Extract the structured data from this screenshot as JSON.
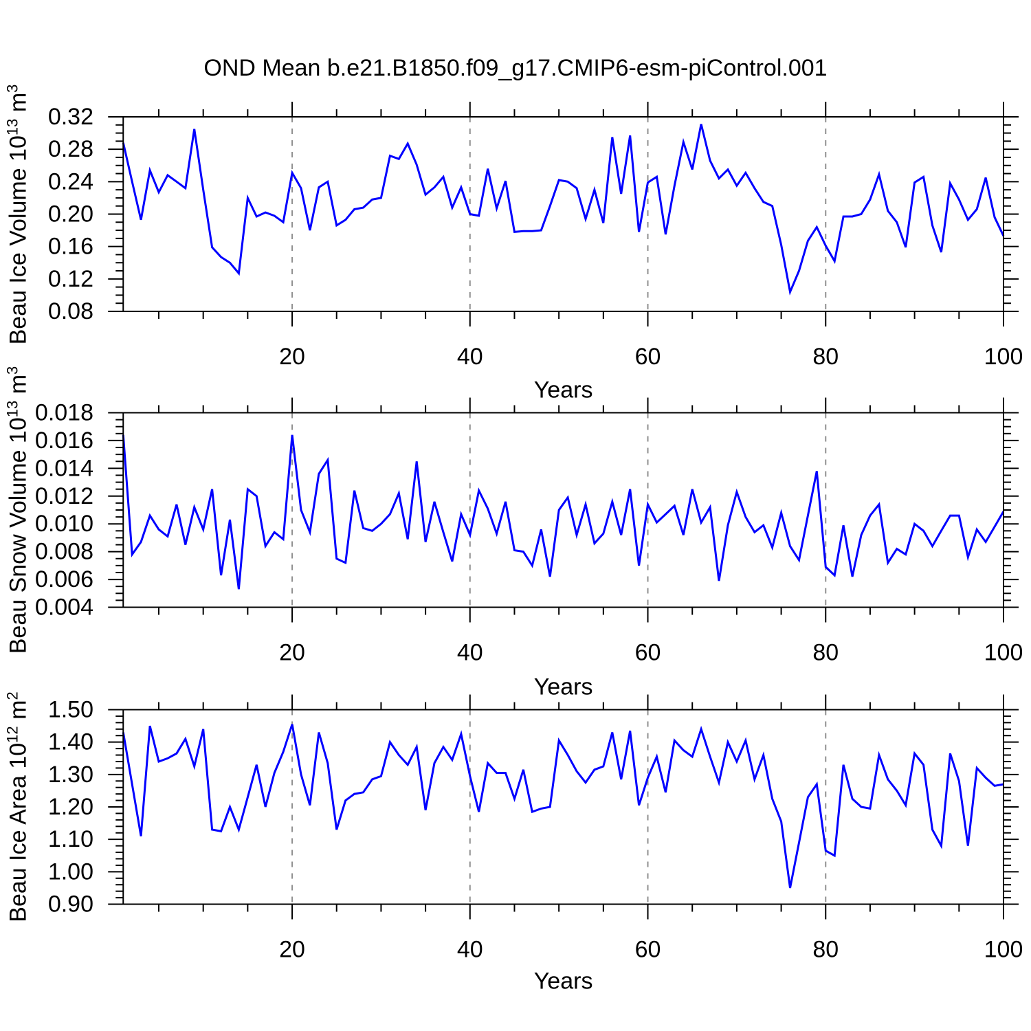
{
  "title": "OND Mean b.e21.B1850.f09_g17.CMIP6-esm-piControl.001",
  "x_axis_label": "Years",
  "line_color": "#0000ff",
  "grid_color": "#909090",
  "chart_data": [
    {
      "type": "line",
      "series_id": "beau-ice-volume",
      "ylabel": "Beau Ice Volume 10^13 m^3",
      "ylabel_parts": {
        "prefix": "Beau Ice Volume 10",
        "exponent": "13",
        "unit": " m",
        "unit_exponent": "3"
      },
      "xlabel": "Years",
      "xlim": [
        1,
        100
      ],
      "ylim": [
        0.08,
        0.32
      ],
      "x_start": 1,
      "x_step": 1,
      "xtick_labels": [
        "20",
        "40",
        "60",
        "80",
        "100"
      ],
      "ytick_labels": [
        "0.08",
        "0.12",
        "0.16",
        "0.20",
        "0.24",
        "0.28",
        "0.32"
      ],
      "x_minor_step": 5,
      "y_minor_step": 0.01,
      "grid_x_years": [
        20,
        40,
        60,
        80
      ],
      "grid_on": true,
      "legend": "none",
      "values": [
        0.288,
        0.24,
        0.193,
        0.254,
        0.227,
        0.248,
        0.24,
        0.232,
        0.305,
        0.23,
        0.159,
        0.147,
        0.14,
        0.127,
        0.22,
        0.197,
        0.202,
        0.198,
        0.19,
        0.251,
        0.232,
        0.18,
        0.233,
        0.24,
        0.186,
        0.193,
        0.206,
        0.208,
        0.218,
        0.22,
        0.272,
        0.268,
        0.287,
        0.261,
        0.224,
        0.233,
        0.246,
        0.208,
        0.233,
        0.2,
        0.198,
        0.256,
        0.207,
        0.241,
        0.178,
        0.179,
        0.179,
        0.18,
        0.21,
        0.242,
        0.24,
        0.232,
        0.194,
        0.23,
        0.189,
        0.295,
        0.225,
        0.297,
        0.178,
        0.239,
        0.246,
        0.175,
        0.235,
        0.289,
        0.255,
        0.311,
        0.266,
        0.244,
        0.255,
        0.235,
        0.251,
        0.232,
        0.215,
        0.21,
        0.162,
        0.104,
        0.13,
        0.167,
        0.184,
        0.161,
        0.142,
        0.197,
        0.197,
        0.2,
        0.218,
        0.249,
        0.204,
        0.19,
        0.159,
        0.239,
        0.246,
        0.186,
        0.153,
        0.238,
        0.218,
        0.193,
        0.206,
        0.245,
        0.196,
        0.173
      ]
    },
    {
      "type": "line",
      "series_id": "beau-snow-volume",
      "ylabel": "Beau Snow Volume 10^13 m^3",
      "ylabel_parts": {
        "prefix": "Beau Snow Volume 10",
        "exponent": "13",
        "unit": " m",
        "unit_exponent": "3"
      },
      "xlabel": "Years",
      "xlim": [
        1,
        100
      ],
      "ylim": [
        0.004,
        0.018
      ],
      "x_start": 1,
      "x_step": 1,
      "xtick_labels": [
        "20",
        "40",
        "60",
        "80",
        "100"
      ],
      "ytick_labels": [
        "0.004",
        "0.006",
        "0.008",
        "0.010",
        "0.012",
        "0.014",
        "0.016",
        "0.018"
      ],
      "x_minor_step": 5,
      "y_minor_step": 0.0005,
      "grid_x_years": [
        20,
        40,
        60,
        80
      ],
      "grid_on": true,
      "legend": "none",
      "values": [
        0.0164,
        0.0078,
        0.0087,
        0.0106,
        0.0096,
        0.0091,
        0.0114,
        0.0085,
        0.0112,
        0.0096,
        0.0125,
        0.0063,
        0.0103,
        0.0053,
        0.0125,
        0.012,
        0.0084,
        0.0094,
        0.0089,
        0.0164,
        0.011,
        0.0094,
        0.0136,
        0.0146,
        0.0075,
        0.0072,
        0.0124,
        0.0097,
        0.0095,
        0.01,
        0.0107,
        0.0122,
        0.0089,
        0.0145,
        0.0087,
        0.0116,
        0.0094,
        0.0073,
        0.0107,
        0.0092,
        0.0124,
        0.0111,
        0.0093,
        0.0116,
        0.0081,
        0.008,
        0.007,
        0.0096,
        0.0062,
        0.011,
        0.0119,
        0.0092,
        0.0114,
        0.0086,
        0.0093,
        0.0116,
        0.0092,
        0.0125,
        0.007,
        0.0114,
        0.0101,
        0.0107,
        0.0113,
        0.0092,
        0.0125,
        0.0101,
        0.0112,
        0.0059,
        0.0099,
        0.0123,
        0.0105,
        0.0094,
        0.0099,
        0.0083,
        0.0108,
        0.0084,
        0.0074,
        0.0106,
        0.0138,
        0.0069,
        0.0063,
        0.0099,
        0.0062,
        0.0092,
        0.0106,
        0.0114,
        0.0072,
        0.0082,
        0.0078,
        0.01,
        0.0095,
        0.0084,
        0.0095,
        0.0106,
        0.0106,
        0.0076,
        0.0096,
        0.0087,
        0.0098,
        0.0109
      ]
    },
    {
      "type": "line",
      "series_id": "beau-ice-area",
      "ylabel": "Beau Ice Area 10^12 m^2",
      "ylabel_parts": {
        "prefix": "Beau Ice Area 10",
        "exponent": "12",
        "unit": " m",
        "unit_exponent": "2"
      },
      "xlabel": "Years",
      "xlim": [
        1,
        100
      ],
      "ylim": [
        0.9,
        1.5
      ],
      "x_start": 1,
      "x_step": 1,
      "xtick_labels": [
        "20",
        "40",
        "60",
        "80",
        "100"
      ],
      "ytick_labels": [
        "0.90",
        "1.00",
        "1.10",
        "1.20",
        "1.30",
        "1.40",
        "1.50"
      ],
      "x_minor_step": 5,
      "y_minor_step": 0.02,
      "grid_x_years": [
        20,
        40,
        60,
        80
      ],
      "grid_on": true,
      "legend": "none",
      "values": [
        1.43,
        1.27,
        1.11,
        1.45,
        1.34,
        1.35,
        1.365,
        1.41,
        1.325,
        1.44,
        1.13,
        1.125,
        1.2,
        1.13,
        1.23,
        1.33,
        1.2,
        1.305,
        1.37,
        1.455,
        1.3,
        1.205,
        1.43,
        1.335,
        1.13,
        1.22,
        1.24,
        1.245,
        1.285,
        1.295,
        1.4,
        1.36,
        1.33,
        1.385,
        1.19,
        1.335,
        1.385,
        1.345,
        1.425,
        1.295,
        1.185,
        1.335,
        1.305,
        1.305,
        1.225,
        1.315,
        1.185,
        1.195,
        1.2,
        1.405,
        1.36,
        1.31,
        1.275,
        1.315,
        1.325,
        1.43,
        1.285,
        1.435,
        1.205,
        1.29,
        1.355,
        1.245,
        1.405,
        1.375,
        1.355,
        1.44,
        1.355,
        1.275,
        1.4,
        1.34,
        1.405,
        1.285,
        1.36,
        1.225,
        1.155,
        0.95,
        1.09,
        1.23,
        1.27,
        1.065,
        1.05,
        1.33,
        1.225,
        1.2,
        1.195,
        1.36,
        1.285,
        1.25,
        1.205,
        1.365,
        1.33,
        1.13,
        1.08,
        1.365,
        1.28,
        1.08,
        1.32,
        1.29,
        1.265,
        1.27
      ]
    }
  ]
}
